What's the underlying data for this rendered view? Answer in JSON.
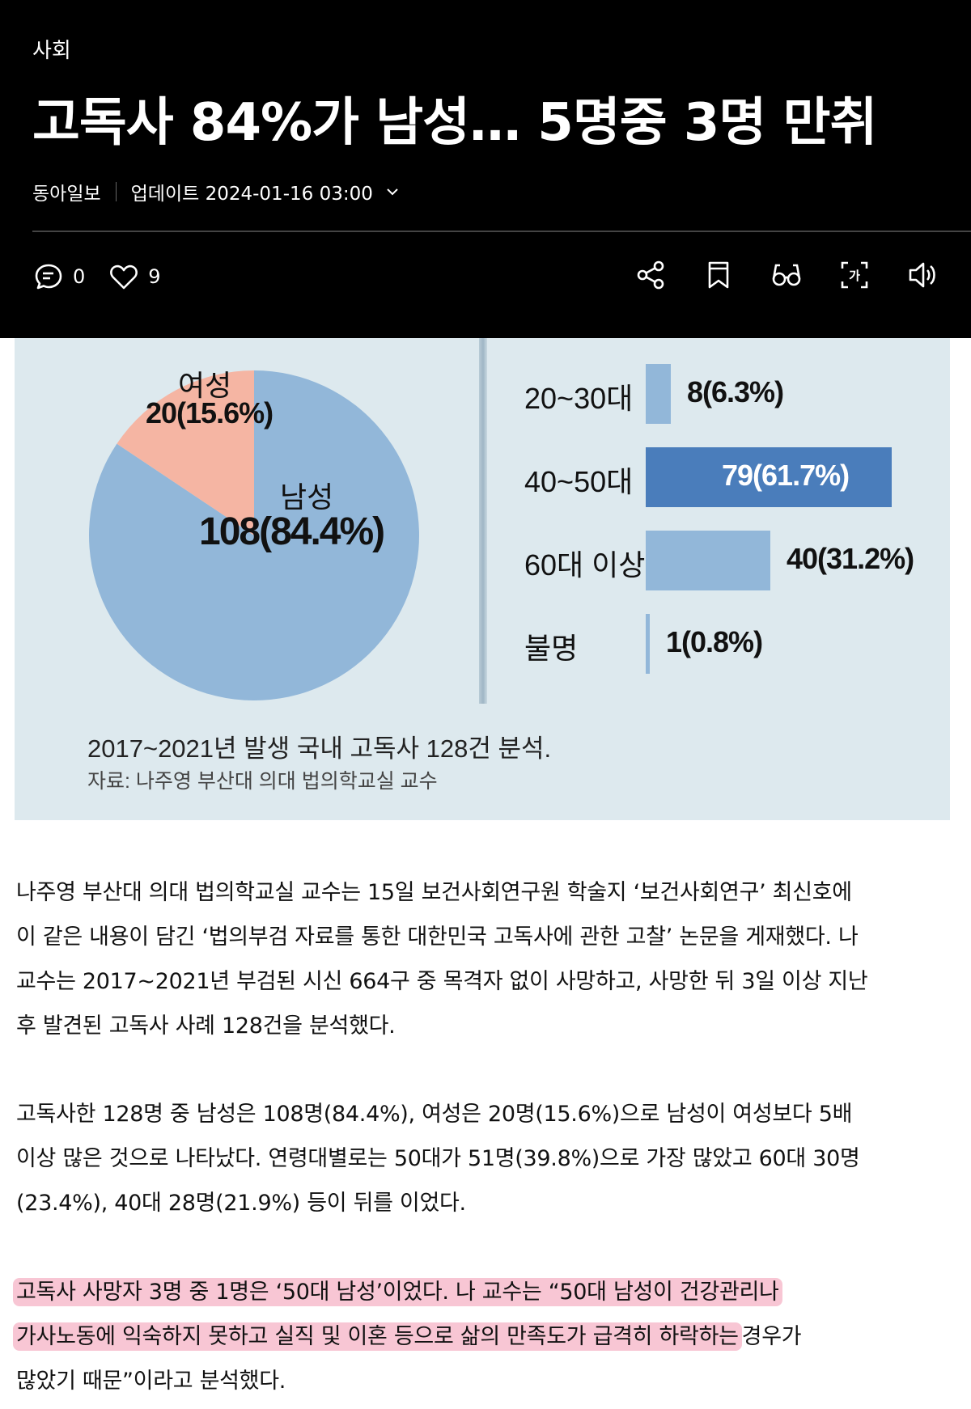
{
  "header": {
    "section": "사회",
    "title": "고독사 84%가 남성… 5명중 3명 만취",
    "publisher": "동아일보",
    "updated": "업데이트 2024-01-16 03:00",
    "comment_count": "0",
    "like_count": "9",
    "icons": [
      "comment-icon",
      "heart-icon",
      "share-icon",
      "bookmark-icon",
      "reader-mode-icon",
      "translate-icon",
      "speaker-icon"
    ]
  },
  "infographic": {
    "pie_labels": {
      "female_name": "여성",
      "female_value": "20(15.6%)",
      "male_name": "남성",
      "male_value": "108(84.4%)"
    },
    "bars": [
      {
        "label": "20~30대",
        "value_text": "8(6.3%)"
      },
      {
        "label": "40~50대",
        "value_text": "79(61.7%)"
      },
      {
        "label": "60대 이상",
        "value_text": "40(31.2%)"
      },
      {
        "label": "불명",
        "value_text": "1(0.8%)"
      }
    ],
    "caption": "2017~2021년 발생 국내 고독사 128건 분석.",
    "source": "자료: 나주영 부산대 의대 법의학교실 교수",
    "colors": {
      "background": "#dde9ee",
      "male": "#92b7d9",
      "female": "#f5b5a3",
      "bar_light": "#92b7d9",
      "bar_dark": "#4a7dbb"
    }
  },
  "chart_data": [
    {
      "type": "pie",
      "categories": [
        "여성",
        "남성"
      ],
      "values": [
        20,
        108
      ],
      "percents": [
        15.6,
        84.4
      ],
      "title": ""
    },
    {
      "type": "bar",
      "orientation": "horizontal",
      "categories": [
        "20~30대",
        "40~50대",
        "60대 이상",
        "불명"
      ],
      "values": [
        8,
        79,
        40,
        1
      ],
      "percents": [
        6.3,
        61.7,
        31.2,
        0.8
      ]
    }
  ],
  "article": {
    "p1_lines": [
      "나주영 부산대 의대 법의학교실 교수는 15일 보건사회연구원 학술지 ‘보건사회연구’ 최신호에",
      "이 같은 내용이 담긴 ‘법의부검 자료를 통한 대한민국 고독사에 관한 고찰’ 논문을 게재했다. 나",
      "교수는 2017~2021년 부검된 시신 664구 중 목격자 없이 사망하고, 사망한 뒤 3일 이상 지난",
      "후 발견된 고독사 사례 128건을 분석했다."
    ],
    "p2_lines": [
      "고독사한 128명 중 남성은 108명(84.4%), 여성은 20명(15.6%)으로 남성이 여성보다 5배",
      "이상 많은 것으로 나타났다. 연령대별로는 50대가 51명(39.8%)으로 가장 많았고 60대 30명",
      "(23.4%), 40대 28명(21.9%) 등이 뒤를 이었다."
    ],
    "p3_line1": "고독사 사망자 3명 중 1명은 ‘50대 남성’이었다. 나 교수는 “50대 남성이 건강관리나",
    "p3_line2_highlight": "가사노동에 익숙하지 못하고 실직 및 이혼 등으로 삶의 만족도가 급격히 하락하는",
    "p3_line2_rest": "경우가",
    "p3_line3": "많았기 때문”이라고 분석했다.",
    "highlight_color": "#f8c6d4"
  }
}
